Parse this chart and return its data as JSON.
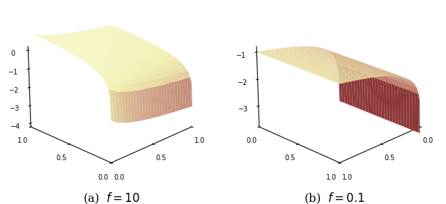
{
  "f1": 10,
  "f2": 0.1,
  "n_points": 60,
  "p_min": 0.001,
  "p_max": 1.0,
  "label_a": "(a)  $f = 10$",
  "label_b": "(b)  $f = 0.1$",
  "label_fontsize": 12,
  "colormap": "RdYlGn",
  "elev1": 22,
  "azim1": 225,
  "elev2": 22,
  "azim2": 45,
  "alpha": 1.0,
  "linewidth": 0,
  "antialiased": true,
  "zticks1": [
    0,
    -1,
    -2,
    -3,
    -4
  ],
  "zticks2": [
    -1,
    -2,
    -3
  ],
  "zlim1": [
    -4.2,
    0.2
  ],
  "zlim2": [
    -3.8,
    -0.8
  ]
}
